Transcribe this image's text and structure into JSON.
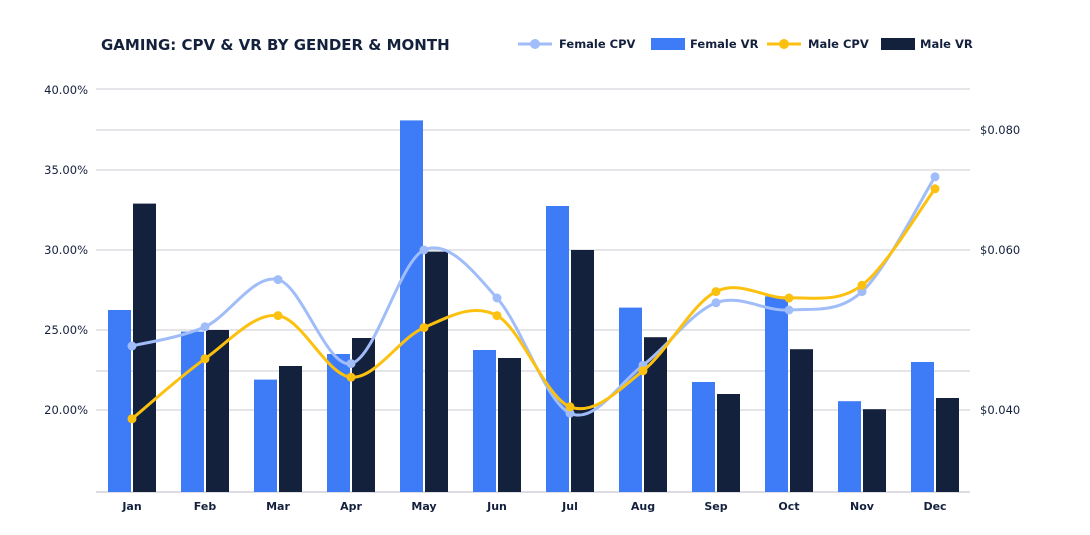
{
  "chart_data": {
    "type": "bar+line",
    "title": "GAMING: CPV & VR BY GENDER & MONTH",
    "categories": [
      "Jan",
      "Feb",
      "Mar",
      "Apr",
      "May",
      "Jun",
      "Jul",
      "Aug",
      "Sep",
      "Oct",
      "Nov",
      "Dec"
    ],
    "left_axis": {
      "ticks": [
        "40.00%",
        "35.00%",
        "30.00%",
        "25.00%",
        "20.00%"
      ],
      "tick_values": [
        40,
        35,
        30,
        25,
        20
      ],
      "range": [
        15,
        40
      ],
      "unit": "%"
    },
    "right_axis": {
      "ticks": [
        "$0.080",
        "$0.060",
        "$0.040"
      ],
      "tick_values": [
        0.08,
        0.06,
        0.04
      ]
    },
    "grid": true,
    "legend_position": "top-right",
    "series": [
      {
        "name": "Female CPV",
        "kind": "line",
        "axis": "right",
        "color": "#a0bdfa",
        "values": [
          0.048,
          0.0504,
          0.0563,
          0.0458,
          0.06,
          0.054,
          0.0396,
          0.0456,
          0.0534,
          0.0525,
          0.0548,
          0.0722
        ]
      },
      {
        "name": "Female VR",
        "kind": "bar",
        "axis": "left",
        "color": "#3d7bf7",
        "values": [
          26.25,
          24.9,
          21.9,
          23.5,
          38.1,
          23.75,
          32.75,
          26.4,
          21.75,
          27.1,
          20.55,
          23.0
        ]
      },
      {
        "name": "Male CPV",
        "kind": "line",
        "axis": "right",
        "color": "#fcc10f",
        "values": [
          0.0389,
          0.0464,
          0.0518,
          0.0441,
          0.0503,
          0.0518,
          0.0404,
          0.0449,
          0.0548,
          0.054,
          0.0556,
          0.0702
        ]
      },
      {
        "name": "Male VR",
        "kind": "bar",
        "axis": "left",
        "color": "#14213d",
        "values": [
          32.9,
          25.0,
          22.75,
          24.5,
          29.9,
          23.25,
          30.0,
          24.55,
          21.0,
          23.8,
          20.05,
          20.75
        ]
      }
    ]
  }
}
